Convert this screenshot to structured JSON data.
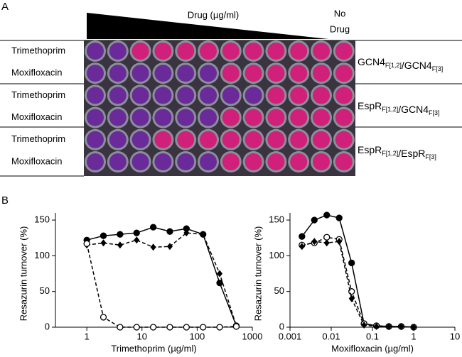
{
  "panel_a": {
    "label": "A",
    "drug_label": "Drug (µg/ml)",
    "no_drug": [
      "No",
      "Drug"
    ],
    "rows": [
      "Trimethoprim",
      "Moxifloxacin",
      "Trimethoprim",
      "Moxifloxacin",
      "Trimethoprim",
      "Moxifloxacin"
    ],
    "strains": [
      [
        {
          "text": "GCN4",
          "sub": "F[1,2]"
        },
        {
          "text": "/GCN4",
          "sub": "F[3]"
        }
      ],
      [
        {
          "text": "EspR",
          "sub": "F[1,2]"
        },
        {
          "text": "/GCN4",
          "sub": "F[3]"
        }
      ],
      [
        {
          "text": "EspR",
          "sub": "F[1,2]"
        },
        {
          "text": "/EspR",
          "sub": "F[3]"
        }
      ]
    ]
  },
  "panel_b_label": "B",
  "chart_data": [
    {
      "type": "line",
      "x_label": "Trimethoprim (µg/ml)",
      "y_label": "Resazurin turnover (%)",
      "log_x": true,
      "x": [
        1,
        2,
        4,
        8,
        16,
        32,
        64,
        128,
        256,
        512
      ],
      "series": [
        {
          "color": "#000000",
          "marker": "filled-circle",
          "dashed": false,
          "values": [
            122,
            128,
            130,
            132,
            140,
            134,
            138,
            130,
            62,
            2
          ]
        },
        {
          "color": "#000000",
          "marker": "diamond",
          "dashed": true,
          "values": [
            115,
            118,
            115,
            122,
            112,
            113,
            132,
            130,
            75,
            2
          ]
        },
        {
          "color": "#000000",
          "marker": "open-circle",
          "dashed": true,
          "values": [
            117,
            14,
            0,
            0,
            0,
            0,
            0,
            0,
            0,
            1
          ]
        }
      ],
      "xlim": [
        0.27,
        1000
      ],
      "xticks": [
        1,
        10,
        100,
        1000
      ],
      "ylim": [
        0,
        160
      ],
      "yticks": [
        0,
        50,
        100,
        150
      ]
    },
    {
      "type": "line",
      "x_label": "Moxifloxacin (µg/ml)",
      "y_label": "Resazurin turnover (%)",
      "log_x": true,
      "x": [
        0.00195,
        0.0039,
        0.0078,
        0.0156,
        0.03125,
        0.0625,
        0.125,
        0.25,
        0.5,
        1
      ],
      "series": [
        {
          "color": "#000000",
          "marker": "filled-circle",
          "dashed": false,
          "values": [
            127,
            150,
            157,
            153,
            90,
            5,
            2,
            1,
            1,
            0
          ]
        },
        {
          "color": "#000000",
          "marker": "open-circle",
          "dashed": true,
          "values": [
            115,
            118,
            126,
            123,
            50,
            5,
            2,
            1,
            1,
            0
          ]
        },
        {
          "color": "#000000",
          "marker": "diamond",
          "dashed": true,
          "values": [
            113,
            120,
            118,
            120,
            40,
            3,
            1,
            1,
            1,
            0
          ]
        }
      ],
      "xlim": [
        0.001,
        10
      ],
      "xticks": [
        0.001,
        0.01,
        0.1,
        1,
        10
      ],
      "ylim": [
        0,
        160
      ],
      "yticks": [
        0,
        50,
        100,
        150
      ]
    }
  ]
}
